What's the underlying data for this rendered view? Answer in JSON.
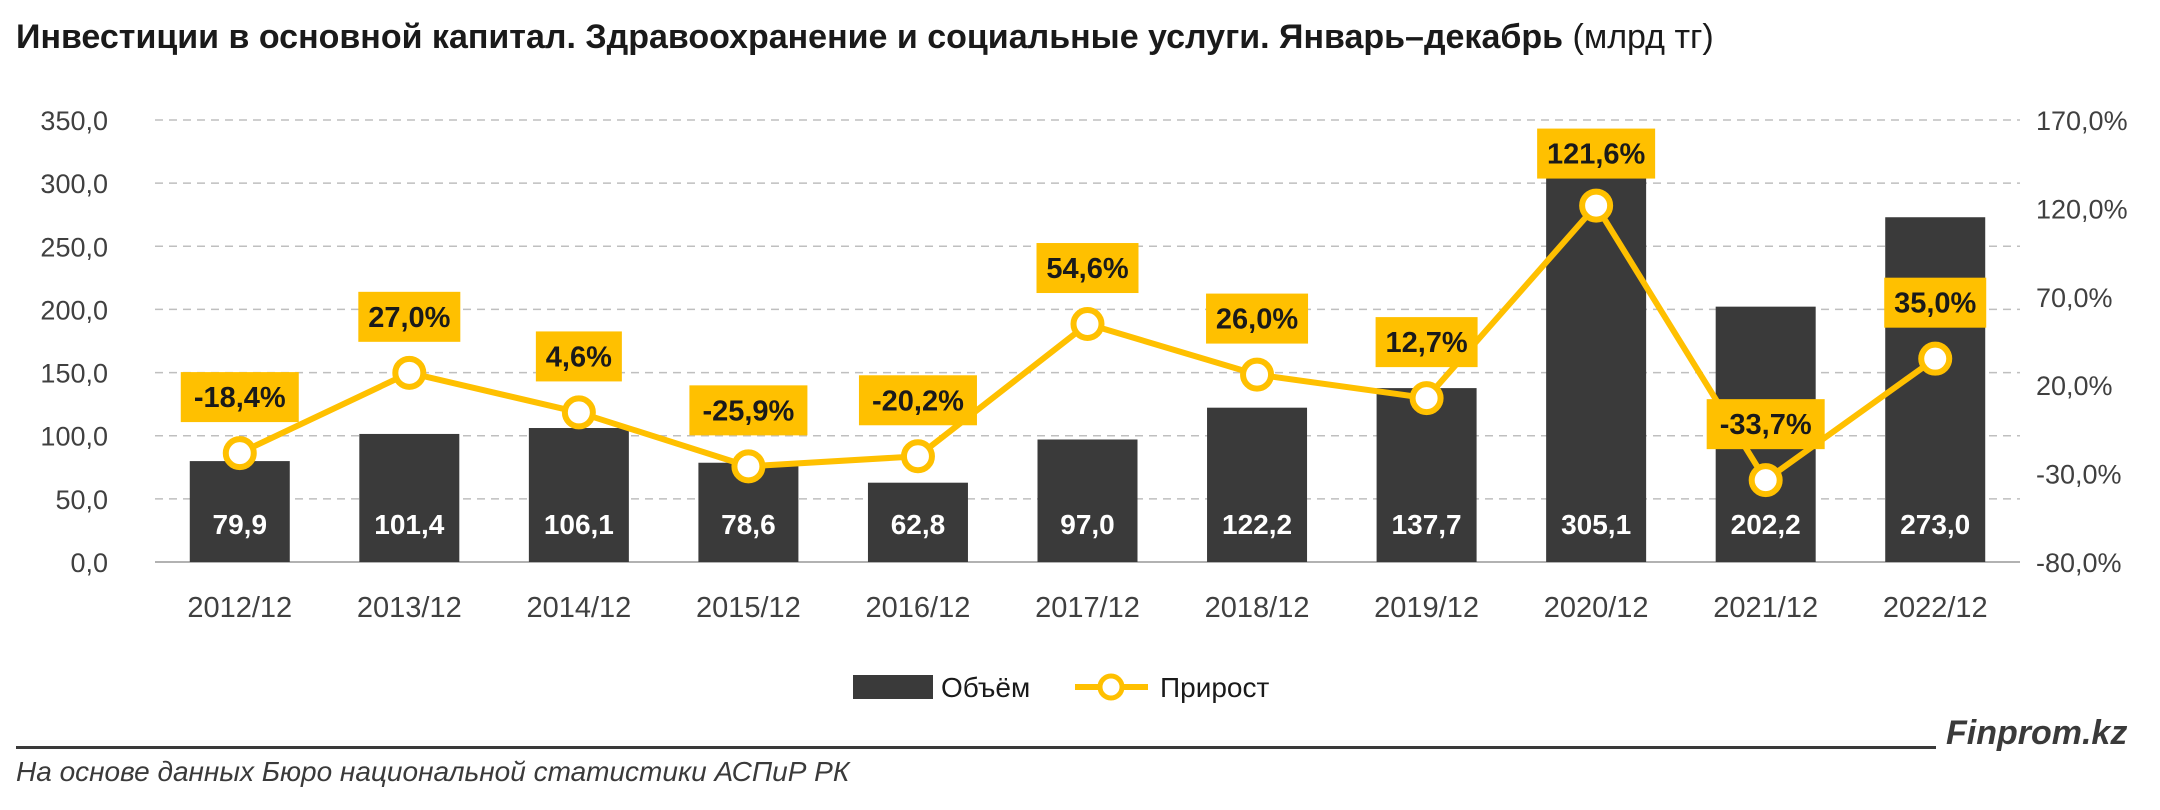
{
  "header": {
    "title": "Инвестиции в основной капитал. Здравоохранение и социальные услуги. Январь–декабрь",
    "unit": "(млрд тг)"
  },
  "footer": {
    "source": "На основе данных Бюро национальной статистики АСПиР РК",
    "brand": "Finprom.kz"
  },
  "colors": {
    "bar": "#3a3a3a",
    "line": "#ffc000",
    "grid": "#bfbfbf",
    "text": "#404040"
  },
  "chart_data": {
    "type": "bar",
    "categories": [
      "2012/12",
      "2013/12",
      "2014/12",
      "2015/12",
      "2016/12",
      "2017/12",
      "2018/12",
      "2019/12",
      "2020/12",
      "2021/12",
      "2022/12"
    ],
    "series": [
      {
        "name": "Объём",
        "type": "bar",
        "axis": "left",
        "values": [
          79.9,
          101.4,
          106.1,
          78.6,
          62.8,
          97.0,
          122.2,
          137.7,
          305.1,
          202.2,
          273.0
        ],
        "labels": [
          "79,9",
          "101,4",
          "106,1",
          "78,6",
          "62,8",
          "97,0",
          "122,2",
          "137,7",
          "305,1",
          "202,2",
          "273,0"
        ]
      },
      {
        "name": "Прирост",
        "type": "line",
        "axis": "right",
        "values": [
          -18.4,
          27.0,
          4.6,
          -25.9,
          -20.2,
          54.6,
          26.0,
          12.7,
          121.6,
          -33.7,
          35.0
        ],
        "labels": [
          "-18,4%",
          "27,0%",
          "4,6%",
          "-25,9%",
          "-20,2%",
          "54,6%",
          "26,0%",
          "12,7%",
          "121,6%",
          "-33,7%",
          "35,0%"
        ]
      }
    ],
    "left_axis": {
      "ylim": [
        0,
        350
      ],
      "ticks": [
        "0,0",
        "50,0",
        "100,0",
        "150,0",
        "200,0",
        "250,0",
        "300,0",
        "350,0"
      ]
    },
    "right_axis": {
      "ylim": [
        -80,
        170
      ],
      "ticks": [
        "-80,0%",
        "-30,0%",
        "20,0%",
        "70,0%",
        "120,0%",
        "170,0%"
      ]
    },
    "grid": true,
    "legend": "bottom-center"
  }
}
